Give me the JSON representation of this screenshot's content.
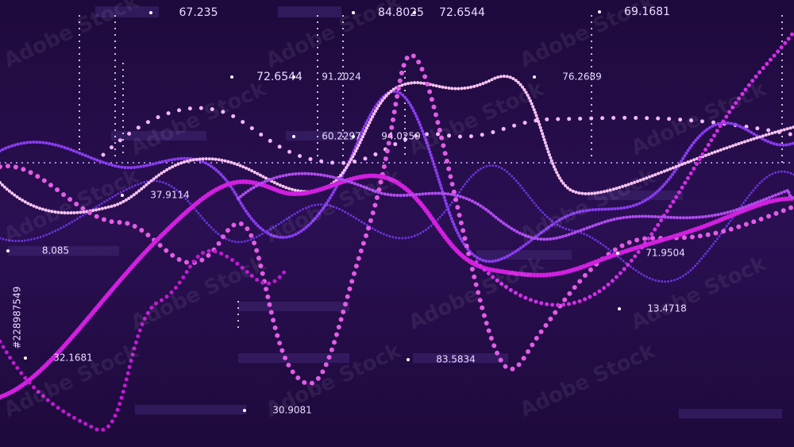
{
  "labels": [
    "67.235",
    "84.8025",
    "72.6544",
    "69.1681",
    "72.6544",
    "91.2024",
    "76.2689",
    "60.2297",
    "94.0259",
    "37.9114",
    "8.085",
    "71.9504",
    "13.4718",
    "32.1681",
    "83.5834",
    "30.9081"
  ],
  "watermark": "Adobe Stock",
  "stock_id": "#228987549"
}
